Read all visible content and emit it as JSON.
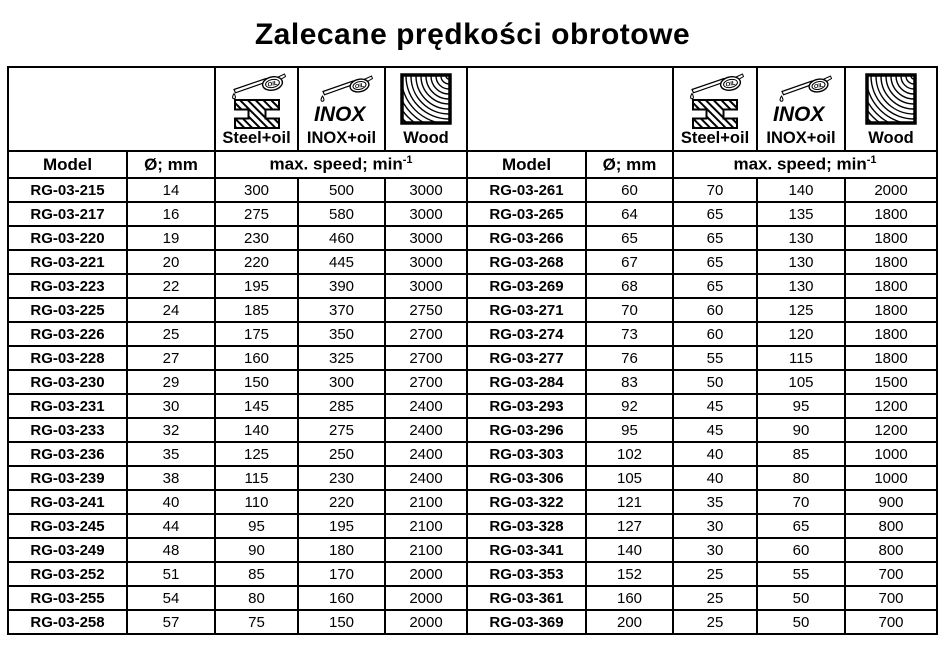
{
  "title": "Zalecane prędkości obrotowe",
  "colors": {
    "border": "#000000",
    "text": "#000000",
    "background": "#ffffff"
  },
  "table": {
    "model_header": "Model",
    "diameter_header": "Ø; mm",
    "speed_header_text": "max. speed; min",
    "speed_header_sup": "-1",
    "material_columns": [
      {
        "label": "Steel+oil",
        "icon": "steel-oil-icon",
        "oil_text": "OIL"
      },
      {
        "label": "INOX+oil",
        "icon": "inox-oil-icon",
        "oil_text": "OIL",
        "brand_text": "INOX"
      },
      {
        "label": "Wood",
        "icon": "wood-grain-icon"
      }
    ],
    "left_rows": [
      {
        "model": "RG-03-215",
        "diameter": "14",
        "steel": "300",
        "inox": "500",
        "wood": "3000"
      },
      {
        "model": "RG-03-217",
        "diameter": "16",
        "steel": "275",
        "inox": "580",
        "wood": "3000"
      },
      {
        "model": "RG-03-220",
        "diameter": "19",
        "steel": "230",
        "inox": "460",
        "wood": "3000"
      },
      {
        "model": "RG-03-221",
        "diameter": "20",
        "steel": "220",
        "inox": "445",
        "wood": "3000"
      },
      {
        "model": "RG-03-223",
        "diameter": "22",
        "steel": "195",
        "inox": "390",
        "wood": "3000"
      },
      {
        "model": "RG-03-225",
        "diameter": "24",
        "steel": "185",
        "inox": "370",
        "wood": "2750"
      },
      {
        "model": "RG-03-226",
        "diameter": "25",
        "steel": "175",
        "inox": "350",
        "wood": "2700"
      },
      {
        "model": "RG-03-228",
        "diameter": "27",
        "steel": "160",
        "inox": "325",
        "wood": "2700"
      },
      {
        "model": "RG-03-230",
        "diameter": "29",
        "steel": "150",
        "inox": "300",
        "wood": "2700"
      },
      {
        "model": "RG-03-231",
        "diameter": "30",
        "steel": "145",
        "inox": "285",
        "wood": "2400"
      },
      {
        "model": "RG-03-233",
        "diameter": "32",
        "steel": "140",
        "inox": "275",
        "wood": "2400"
      },
      {
        "model": "RG-03-236",
        "diameter": "35",
        "steel": "125",
        "inox": "250",
        "wood": "2400"
      },
      {
        "model": "RG-03-239",
        "diameter": "38",
        "steel": "115",
        "inox": "230",
        "wood": "2400"
      },
      {
        "model": "RG-03-241",
        "diameter": "40",
        "steel": "110",
        "inox": "220",
        "wood": "2100"
      },
      {
        "model": "RG-03-245",
        "diameter": "44",
        "steel": "95",
        "inox": "195",
        "wood": "2100"
      },
      {
        "model": "RG-03-249",
        "diameter": "48",
        "steel": "90",
        "inox": "180",
        "wood": "2100"
      },
      {
        "model": "RG-03-252",
        "diameter": "51",
        "steel": "85",
        "inox": "170",
        "wood": "2000"
      },
      {
        "model": "RG-03-255",
        "diameter": "54",
        "steel": "80",
        "inox": "160",
        "wood": "2000"
      },
      {
        "model": "RG-03-258",
        "diameter": "57",
        "steel": "75",
        "inox": "150",
        "wood": "2000"
      }
    ],
    "right_rows": [
      {
        "model": "RG-03-261",
        "diameter": "60",
        "steel": "70",
        "inox": "140",
        "wood": "2000"
      },
      {
        "model": "RG-03-265",
        "diameter": "64",
        "steel": "65",
        "inox": "135",
        "wood": "1800"
      },
      {
        "model": "RG-03-266",
        "diameter": "65",
        "steel": "65",
        "inox": "130",
        "wood": "1800"
      },
      {
        "model": "RG-03-268",
        "diameter": "67",
        "steel": "65",
        "inox": "130",
        "wood": "1800"
      },
      {
        "model": "RG-03-269",
        "diameter": "68",
        "steel": "65",
        "inox": "130",
        "wood": "1800"
      },
      {
        "model": "RG-03-271",
        "diameter": "70",
        "steel": "60",
        "inox": "125",
        "wood": "1800"
      },
      {
        "model": "RG-03-274",
        "diameter": "73",
        "steel": "60",
        "inox": "120",
        "wood": "1800"
      },
      {
        "model": "RG-03-277",
        "diameter": "76",
        "steel": "55",
        "inox": "115",
        "wood": "1800"
      },
      {
        "model": "RG-03-284",
        "diameter": "83",
        "steel": "50",
        "inox": "105",
        "wood": "1500"
      },
      {
        "model": "RG-03-293",
        "diameter": "92",
        "steel": "45",
        "inox": "95",
        "wood": "1200"
      },
      {
        "model": "RG-03-296",
        "diameter": "95",
        "steel": "45",
        "inox": "90",
        "wood": "1200"
      },
      {
        "model": "RG-03-303",
        "diameter": "102",
        "steel": "40",
        "inox": "85",
        "wood": "1000"
      },
      {
        "model": "RG-03-306",
        "diameter": "105",
        "steel": "40",
        "inox": "80",
        "wood": "1000"
      },
      {
        "model": "RG-03-322",
        "diameter": "121",
        "steel": "35",
        "inox": "70",
        "wood": "900"
      },
      {
        "model": "RG-03-328",
        "diameter": "127",
        "steel": "30",
        "inox": "65",
        "wood": "800"
      },
      {
        "model": "RG-03-341",
        "diameter": "140",
        "steel": "30",
        "inox": "60",
        "wood": "800"
      },
      {
        "model": "RG-03-353",
        "diameter": "152",
        "steel": "25",
        "inox": "55",
        "wood": "700"
      },
      {
        "model": "RG-03-361",
        "diameter": "160",
        "steel": "25",
        "inox": "50",
        "wood": "700"
      },
      {
        "model": "RG-03-369",
        "diameter": "200",
        "steel": "25",
        "inox": "50",
        "wood": "700"
      }
    ]
  }
}
